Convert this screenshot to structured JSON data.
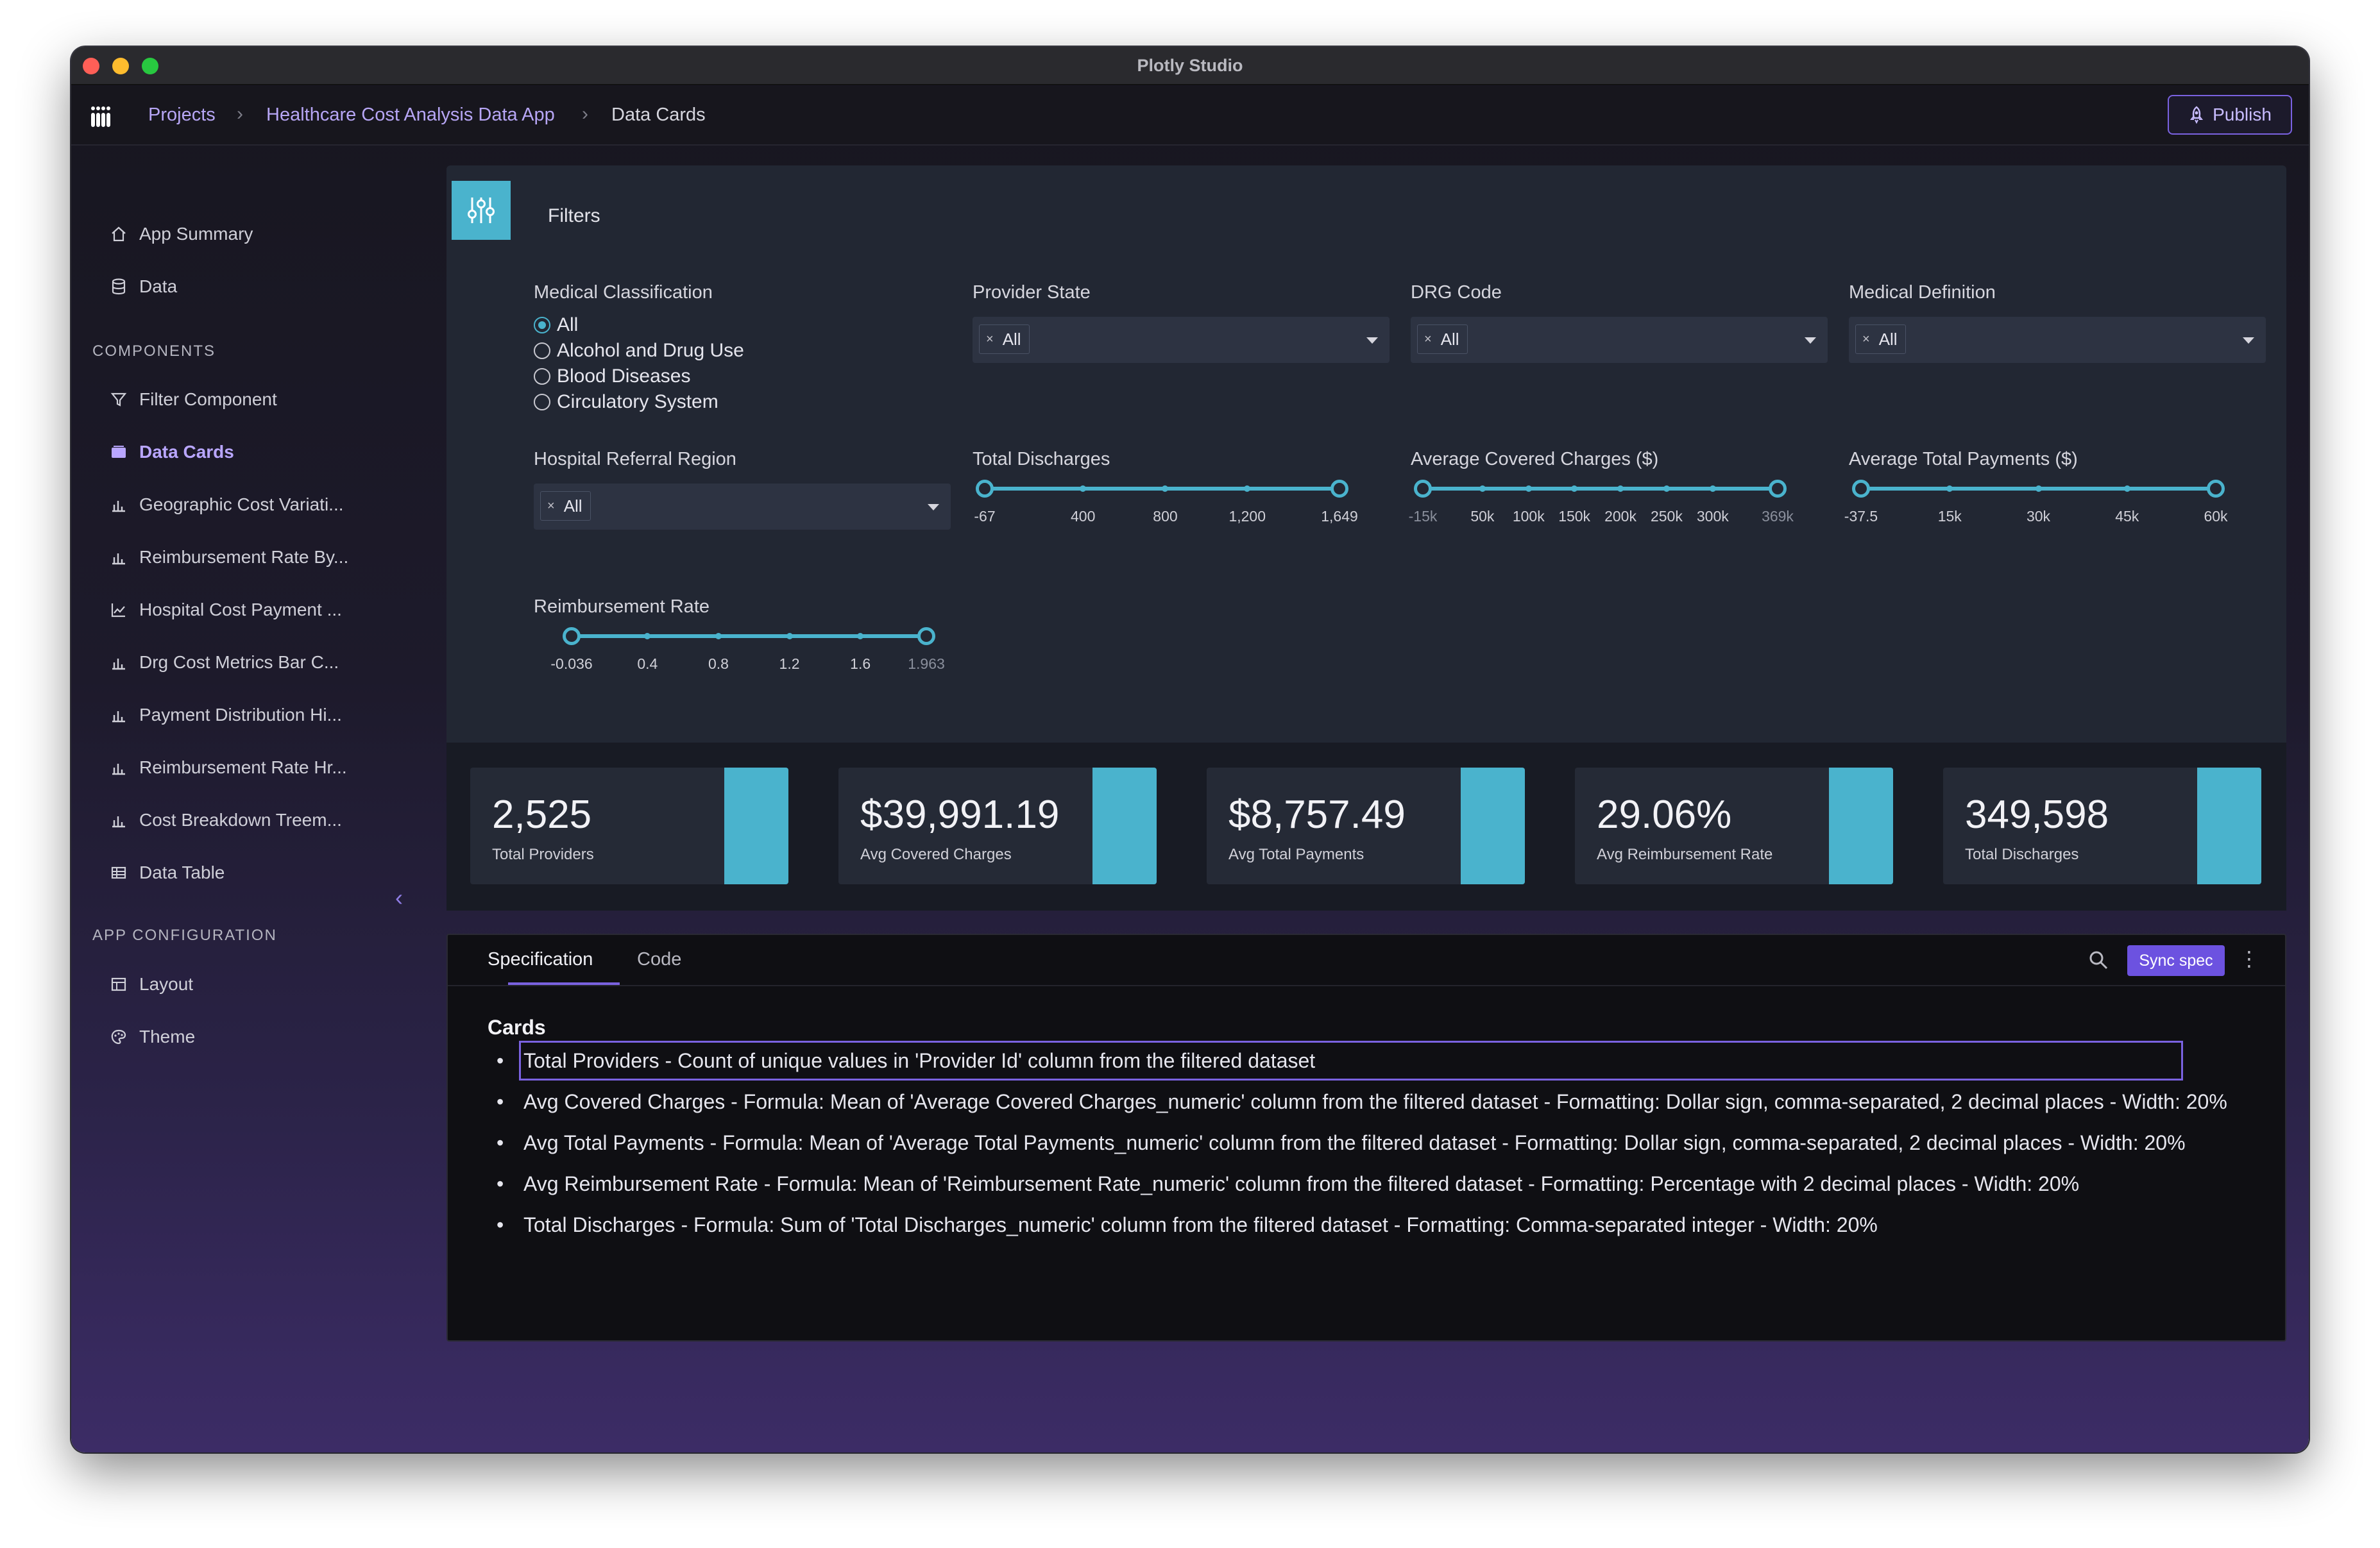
{
  "window": {
    "title": "Plotly Studio"
  },
  "breadcrumb": {
    "items": [
      "Projects",
      "Healthcare Cost Analysis Data App",
      "Data Cards"
    ]
  },
  "header": {
    "publish_label": "Publish"
  },
  "sidebar": {
    "top_items": [
      {
        "label": "App Summary",
        "icon": "home-icon"
      },
      {
        "label": "Data",
        "icon": "database-icon"
      }
    ],
    "components_heading": "COMPONENTS",
    "components": [
      {
        "label": "Filter Component",
        "icon": "filter-icon"
      },
      {
        "label": "Data Cards",
        "icon": "cards-icon",
        "active": true
      },
      {
        "label": "Geographic Cost Variati...",
        "icon": "bar-chart-icon"
      },
      {
        "label": "Reimbursement Rate By...",
        "icon": "bar-chart-icon"
      },
      {
        "label": "Hospital Cost Payment ...",
        "icon": "line-chart-icon"
      },
      {
        "label": "Drg Cost Metrics Bar C...",
        "icon": "bar-chart-icon"
      },
      {
        "label": "Payment Distribution Hi...",
        "icon": "bar-chart-icon"
      },
      {
        "label": "Reimbursement Rate Hr...",
        "icon": "bar-chart-icon"
      },
      {
        "label": "Cost Breakdown Treem...",
        "icon": "bar-chart-icon"
      },
      {
        "label": "Data Table",
        "icon": "table-icon"
      }
    ],
    "config_heading": "APP CONFIGURATION",
    "config": [
      {
        "label": "Layout",
        "icon": "layout-icon"
      },
      {
        "label": "Theme",
        "icon": "palette-icon"
      }
    ]
  },
  "filters": {
    "title": "Filters",
    "medical_classification": {
      "label": "Medical Classification",
      "options": [
        "All",
        "Alcohol and Drug Use",
        "Blood Diseases",
        "Circulatory System"
      ],
      "selected": "All"
    },
    "provider_state": {
      "label": "Provider State",
      "value": "All"
    },
    "drg_code": {
      "label": "DRG Code",
      "value": "All"
    },
    "medical_definition": {
      "label": "Medical Definition",
      "value": "All"
    },
    "hospital_referral_region": {
      "label": "Hospital Referral Region",
      "value": "All"
    },
    "total_discharges": {
      "label": "Total Discharges",
      "ticks": [
        "-67",
        "400",
        "800",
        "1,200",
        "1,649"
      ]
    },
    "avg_covered_charges": {
      "label": "Average Covered Charges ($)",
      "ticks": [
        "-15k",
        "50k",
        "100k",
        "150k",
        "200k",
        "250k",
        "300k",
        "369k"
      ]
    },
    "avg_total_payments": {
      "label": "Average Total Payments ($)",
      "ticks": [
        "-37.5",
        "15k",
        "30k",
        "45k",
        "60k"
      ]
    },
    "reimbursement_rate": {
      "label": "Reimbursement Rate",
      "ticks": [
        "-0.036",
        "0.4",
        "0.8",
        "1.2",
        "1.6",
        "1.963"
      ]
    }
  },
  "cards": [
    {
      "value": "2,525",
      "label": "Total Providers"
    },
    {
      "value": "$39,991.19",
      "label": "Avg Covered Charges"
    },
    {
      "value": "$8,757.49",
      "label": "Avg Total Payments"
    },
    {
      "value": "29.06%",
      "label": "Avg Reimbursement Rate"
    },
    {
      "value": "349,598",
      "label": "Total Discharges"
    }
  ],
  "spec": {
    "tabs": [
      "Specification",
      "Code"
    ],
    "sync_label": "Sync spec",
    "heading": "Cards",
    "items": [
      "Total Providers - Count of unique values in 'Provider Id' column from the filtered dataset",
      "Avg Covered Charges - Formula: Mean of 'Average Covered Charges_numeric' column from the filtered dataset - Formatting: Dollar sign, comma-separated, 2 decimal places - Width: 20%",
      "Avg Total Payments - Formula: Mean of 'Average Total Payments_numeric' column from the filtered dataset - Formatting: Dollar sign, comma-separated, 2 decimal places - Width: 20%",
      "Avg Reimbursement Rate - Formula: Mean of 'Reimbursement Rate_numeric' column from the filtered dataset - Formatting: Percentage with 2 decimal places - Width: 20%",
      "Total Discharges - Formula: Sum of 'Total Discharges_numeric' column from the filtered dataset - Formatting: Comma-separated integer - Width: 20%"
    ]
  },
  "colors": {
    "accent": "#4ab3cd",
    "brand": "#7a62e0"
  }
}
